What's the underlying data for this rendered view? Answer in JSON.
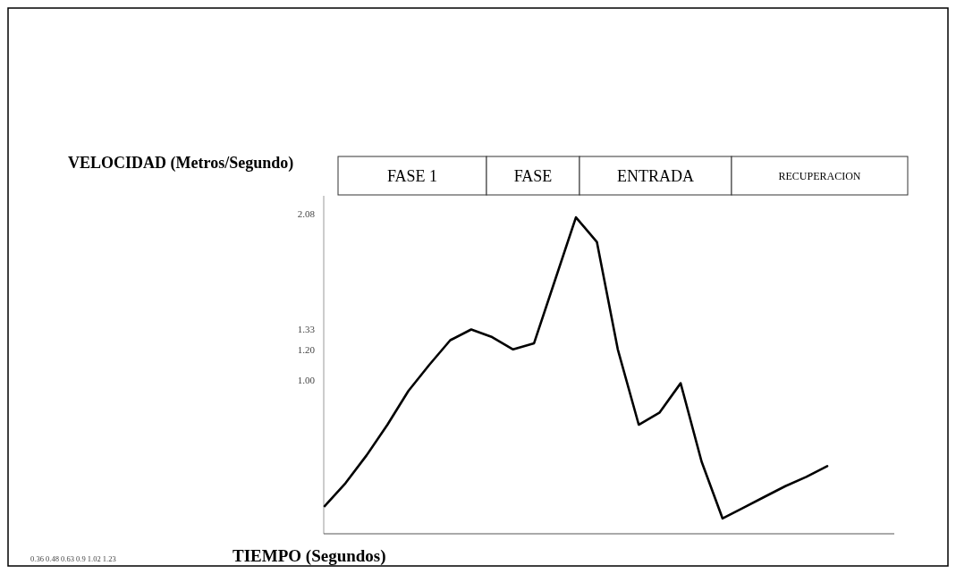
{
  "chart_data": {
    "type": "line",
    "ylabel": "VELOCIDAD (Metros/Segundo)",
    "xlabel": "TIEMPO (Segundos)",
    "categories": [
      null,
      null,
      null,
      null,
      null,
      null,
      null,
      null,
      null,
      null,
      null,
      null,
      null,
      null,
      null,
      null,
      null,
      null,
      null,
      null,
      null,
      null,
      null,
      null,
      null
    ],
    "series": [
      {
        "color": "#000000",
        "values": [
          0.18,
          0.33,
          0.51,
          0.71,
          0.93,
          1.1,
          1.26,
          1.33,
          1.28,
          1.2,
          1.24,
          1.65,
          2.06,
          1.9,
          1.2,
          0.71,
          0.79,
          0.98,
          0.47,
          0.1,
          0.17,
          0.24,
          0.31,
          0.37,
          0.44
        ]
      }
    ],
    "ylim": [
      0,
      2.2
    ],
    "yticks": [
      {
        "value": 1,
        "label": "1.00"
      },
      {
        "value": 1.2,
        "label": "1.20"
      },
      {
        "value": 1.33,
        "label": "1.33"
      },
      {
        "value": 2.08,
        "label": "2.08"
      }
    ],
    "annotations": [
      "FASE 1",
      "FASE",
      "ENTRADA",
      "RECUPERACION",
      "0.36 0.48 0.63 0.9 1.02 1.23"
    ],
    "tick_labels": "y",
    "grid": false,
    "marker": "none",
    "line_style": "solid"
  }
}
